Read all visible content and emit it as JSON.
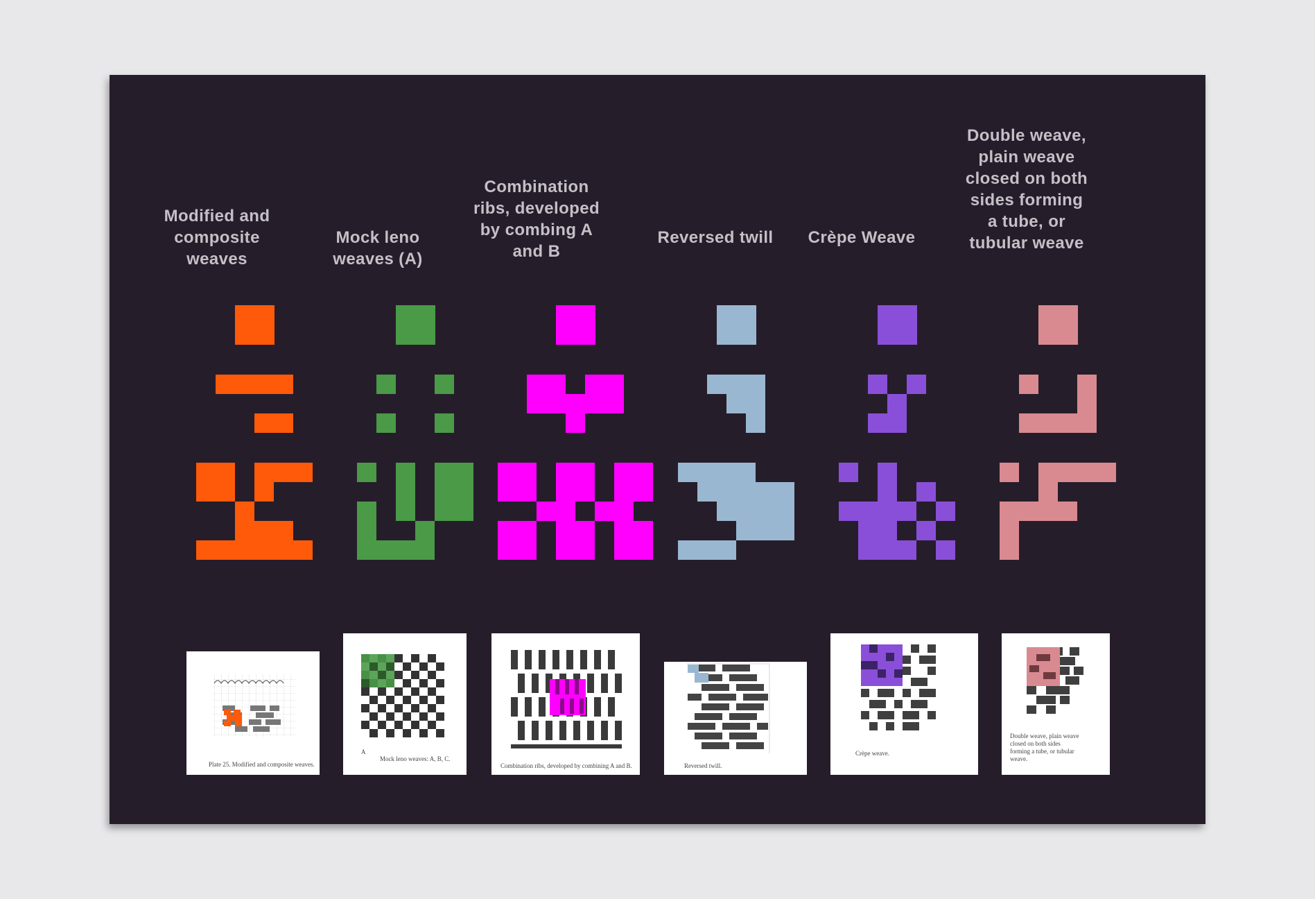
{
  "columns": [
    {
      "id": "modified",
      "label": "Modified and\ncomposite\nweaves",
      "color": "#ff5a0a",
      "pattern2": [
        "1111",
        "....",
        "..11"
      ],
      "pattern3": [
        "11.111",
        "11.1..",
        "..1...",
        "..111.",
        "111111"
      ],
      "scan_caption": "Plate 25.   Modified and composite weaves."
    },
    {
      "id": "mock-leno",
      "label": "Mock leno\nweaves (A)",
      "color": "#4a9a47",
      "pattern2": [
        "1..1",
        "....",
        "1..1"
      ],
      "pattern3": [
        "1.1.11",
        "..1.11",
        "1.1.11",
        "1..1..",
        "1111.."
      ],
      "scan_caption_a": "A",
      "scan_caption": "Mock leno weaves: A, B, C."
    },
    {
      "id": "combination-ribs",
      "label": "Combination\nribs, developed\nby combing A\nand B",
      "color": "#ff00ff",
      "pattern2": [
        "11.11",
        "11111",
        "..1.."
      ],
      "pattern3": [
        "11.11.11",
        "11.11.11",
        "..11.11.",
        "11.11.11",
        "11.11.11"
      ],
      "scan_caption": "Combination ribs, developed by combining A and B."
    },
    {
      "id": "reversed-twill",
      "label": "Reversed twill",
      "color": "#9ab7d1",
      "pattern2": [
        "111",
        ".11",
        "..1"
      ],
      "pattern3": [
        "1111..",
        ".11111",
        "..1111",
        "...111",
        "111..."
      ],
      "scan_caption": "Reversed twill."
    },
    {
      "id": "crepe",
      "label": "Crèpe Weave",
      "color": "#8a4fd8",
      "pattern2": [
        "1.1",
        ".1.",
        "11."
      ],
      "pattern3": [
        "1.1...",
        "..1.1.",
        "1111.1",
        ".11.1.",
        ".111.1"
      ],
      "scan_caption": "Crèpe weave."
    },
    {
      "id": "double-weave",
      "label": "Double weave,\nplain weave\nclosed on both\nsides forming\na tube, or\ntubular weave",
      "color": "#d98a90",
      "pattern2": [
        "1..1",
        "...1",
        "1111"
      ],
      "pattern3": [
        "1.1111",
        "..1...",
        "1111..",
        "1.....",
        "1....."
      ],
      "scan_caption": "Double weave, plain weave\nclosed on both sides\nforming a tube, or tubular\nweave."
    }
  ]
}
